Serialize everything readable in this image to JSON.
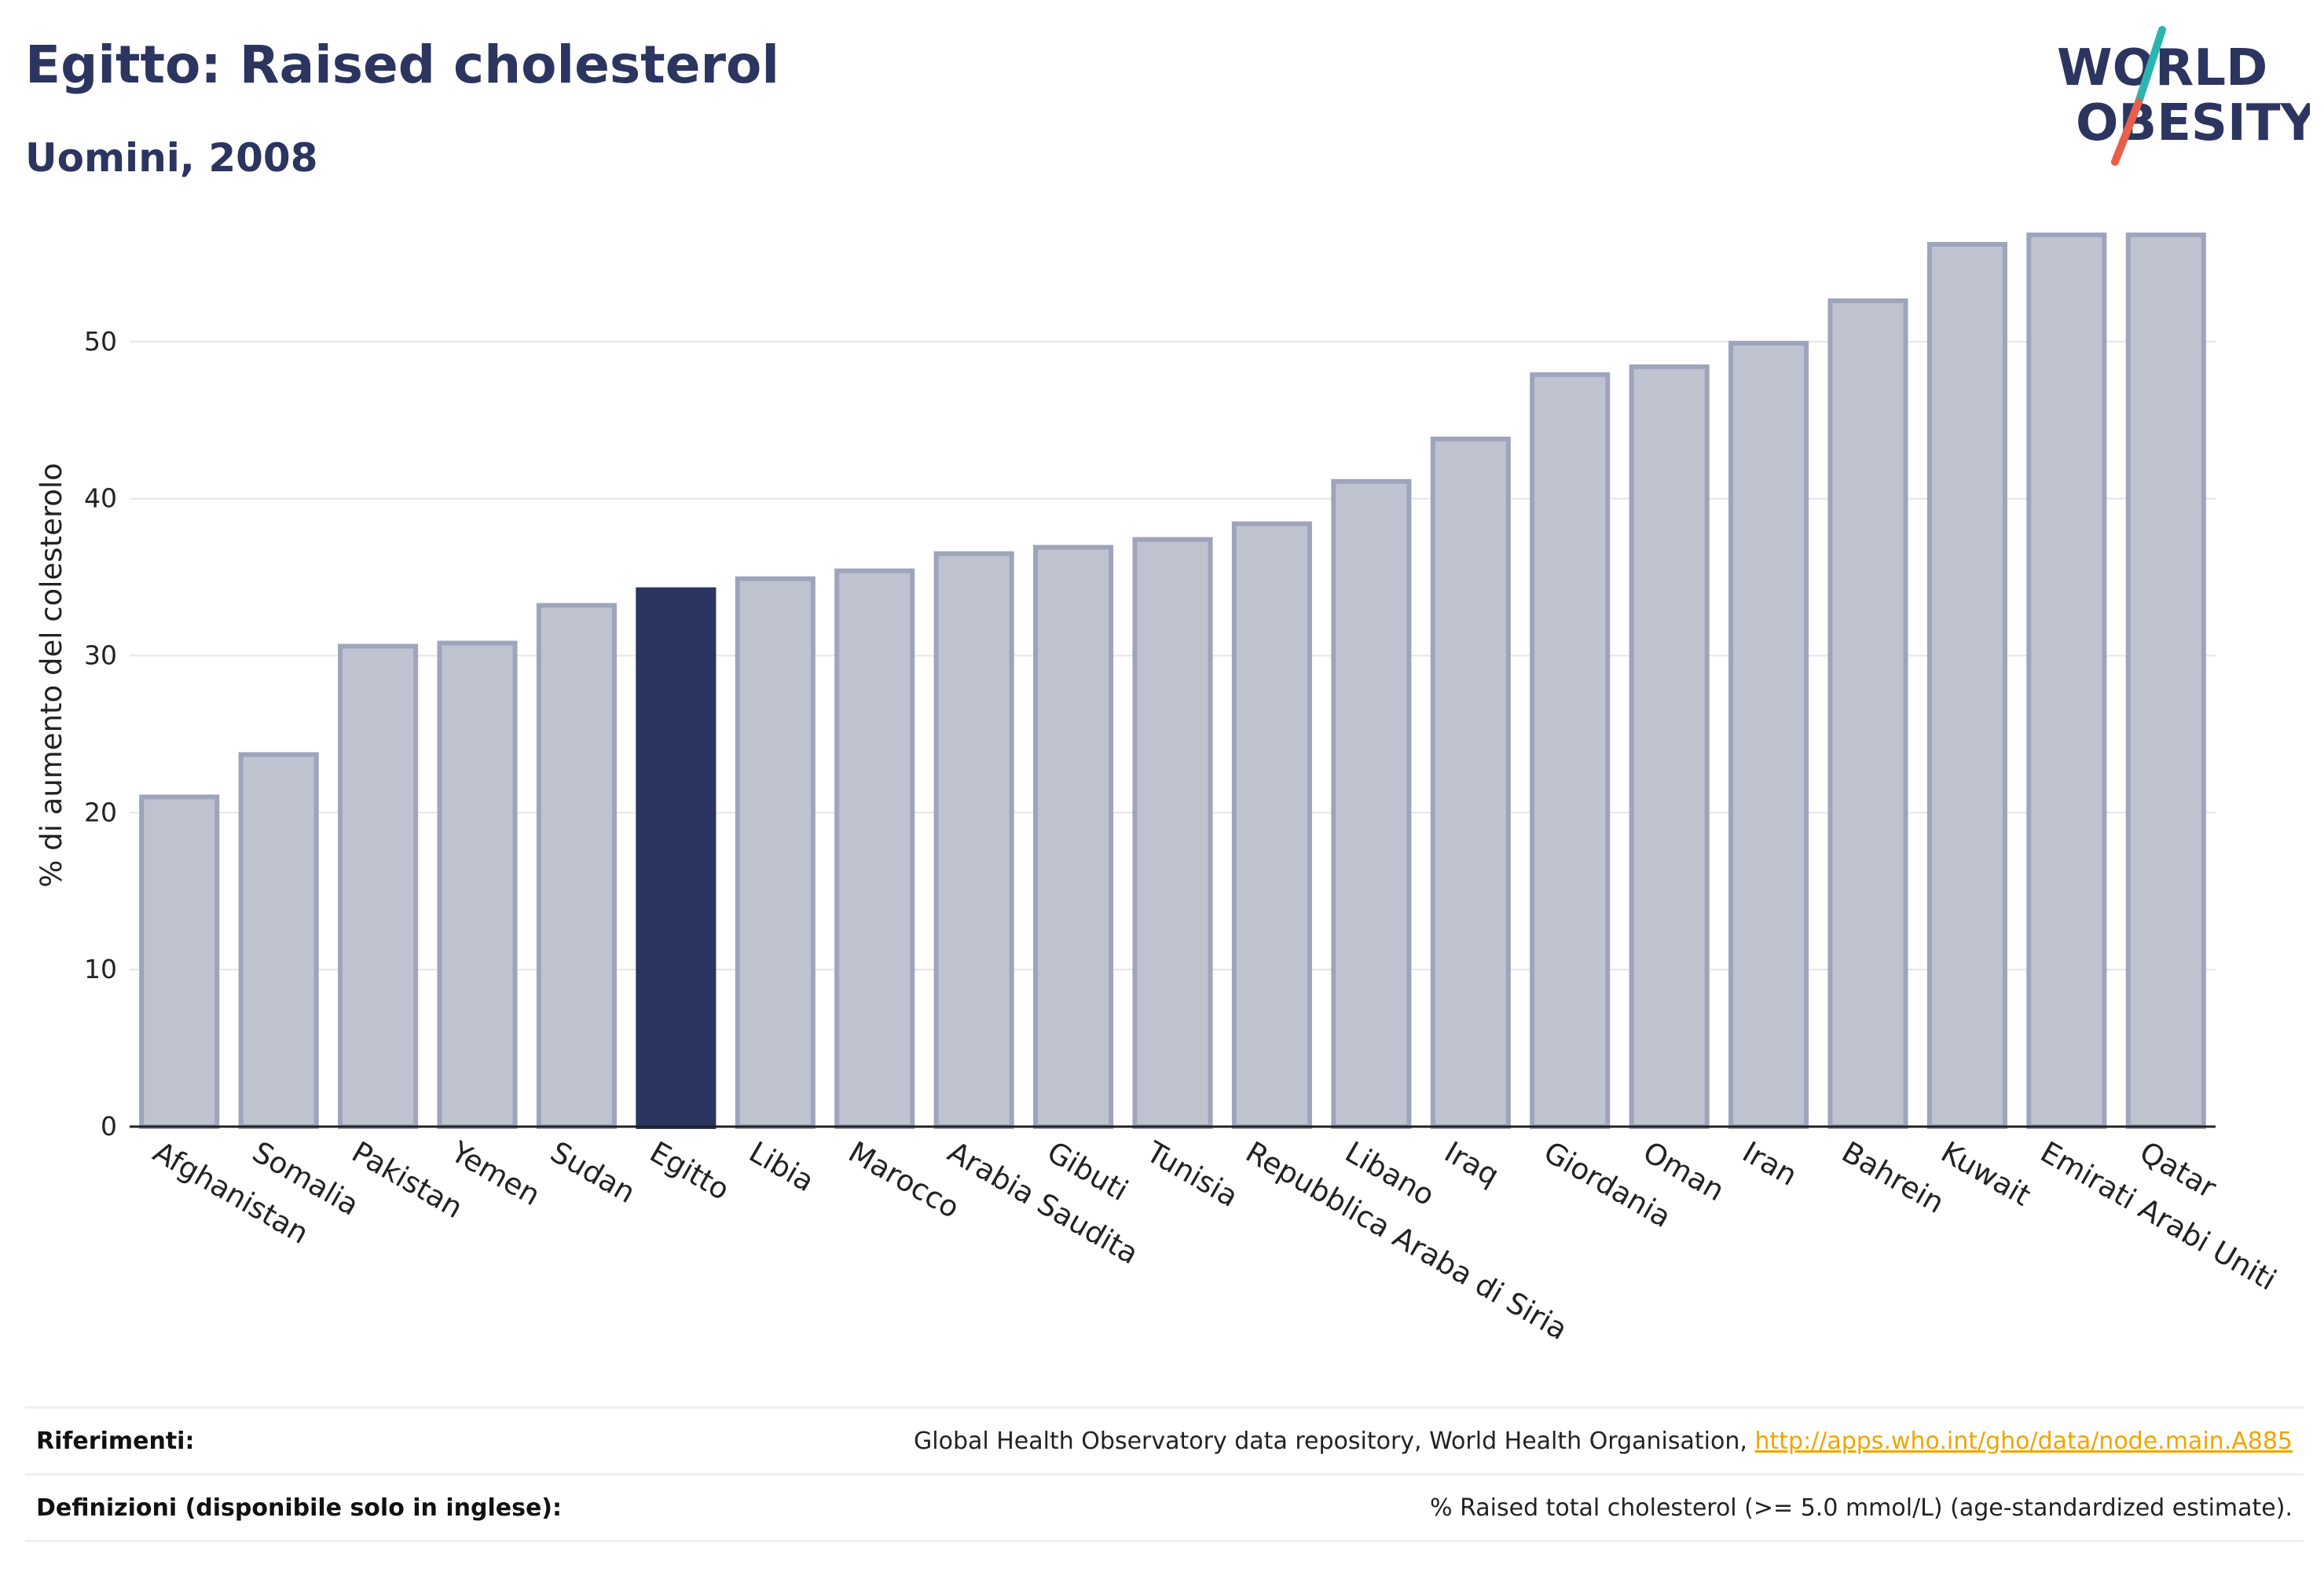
{
  "header": {
    "title": "Egitto: Raised cholesterol",
    "subtitle": "Uomini, 2008"
  },
  "logo": {
    "line1": "WORLD",
    "line2": "OBESITY",
    "text_color": "#2b3560",
    "slash_colors": [
      "#2bb5b0",
      "#e8604c"
    ]
  },
  "colors": {
    "bar_default": "#bfc3d0",
    "bar_border": "#9ea4bb",
    "bar_highlight": "#2b3560",
    "grid": "#e6e6e6",
    "axis": "#222222"
  },
  "chart_data": {
    "type": "bar",
    "title": "Egitto: Raised cholesterol",
    "subtitle": "Uomini, 2008",
    "xlabel": "",
    "ylabel": "% di aumento del colesterolo",
    "ylim": [
      0,
      58
    ],
    "yticks": [
      0,
      10,
      20,
      30,
      40,
      50
    ],
    "grid": true,
    "highlight": "Egitto",
    "categories": [
      "Afghanistan",
      "Somalia",
      "Pakistan",
      "Yemen",
      "Sudan",
      "Egitto",
      "Libia",
      "Marocco",
      "Arabia Saudita",
      "Gibuti",
      "Tunisia",
      "Repubblica Araba di Siria",
      "Libano",
      "Iraq",
      "Giordania",
      "Oman",
      "Iran",
      "Bahrein",
      "Kuwait",
      "Emirati Arabi Uniti",
      "Qatar"
    ],
    "values": [
      21.0,
      23.7,
      30.6,
      30.8,
      33.2,
      34.2,
      34.9,
      35.4,
      36.5,
      36.9,
      37.4,
      38.4,
      41.1,
      43.8,
      47.9,
      48.4,
      49.9,
      52.6,
      56.2,
      56.8,
      56.8
    ]
  },
  "footer": {
    "references_label": "Riferimenti:",
    "references_text": "Global Health Observatory data repository, World Health Organisation, ",
    "references_link": "http://apps.who.int/gho/data/node.main.A885",
    "definitions_label": "Definizioni (disponibile solo in inglese):",
    "definitions_text": "% Raised total cholesterol (>= 5.0 mmol/L) (age-standardized estimate)."
  }
}
